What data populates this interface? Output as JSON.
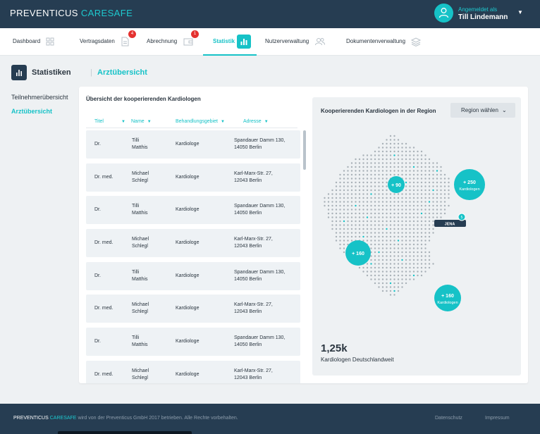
{
  "app": {
    "brand_main": "PREVENTICUS",
    "brand_accent": "CARESAFE"
  },
  "user": {
    "logged_in_label": "Angemeldet als",
    "name": "Till Lindemann"
  },
  "tabs": [
    {
      "label": "Dashboard",
      "icon": "grid-icon"
    },
    {
      "label": "Vertragsdaten",
      "icon": "document-icon",
      "badge": "4"
    },
    {
      "label": "Abrechnung",
      "icon": "wallet-icon",
      "badge": "1"
    },
    {
      "label": "Statistik",
      "icon": "bar-chart-icon",
      "active": true
    },
    {
      "label": "Nutzerverwaltung",
      "icon": "users-icon"
    },
    {
      "label": "Dokumentenverwaltung",
      "icon": "layers-icon"
    }
  ],
  "page": {
    "title": "Statistiken",
    "subtitle": "Arztübersicht"
  },
  "sidenav": [
    {
      "label": "Teilnehmerübersicht",
      "active": false
    },
    {
      "label": "Arztübersicht",
      "active": true
    }
  ],
  "table": {
    "title": "Übersicht der kooperierenden Kardiologen",
    "columns": [
      "Titel",
      "Name",
      "Behandlungsgebiet",
      "Adresse"
    ],
    "rows": [
      {
        "title": "Dr.",
        "first": "Tilli",
        "last": "Matthis",
        "area": "Kardiologe",
        "street": "Spandauer Damm 130,",
        "city": "14050  Berlin"
      },
      {
        "title": "Dr. med.",
        "first": "Michael",
        "last": "Schlegl",
        "area": "Kardiologe",
        "street": "Karl-Marx-Str. 27,",
        "city": "12043  Berlin"
      },
      {
        "title": "Dr.",
        "first": "Tilli",
        "last": "Matthis",
        "area": "Kardiologe",
        "street": "Spandauer Damm 130,",
        "city": "14050  Berlin"
      },
      {
        "title": "Dr. med.",
        "first": "Michael",
        "last": "Schlegl",
        "area": "Kardiologe",
        "street": "Karl-Marx-Str. 27,",
        "city": "12043  Berlin"
      },
      {
        "title": "Dr.",
        "first": "Tilli",
        "last": "Matthis",
        "area": "Kardiologe",
        "street": "Spandauer Damm 130,",
        "city": "14050  Berlin"
      },
      {
        "title": "Dr. med.",
        "first": "Michael",
        "last": "Schlegl",
        "area": "Kardiologe",
        "street": "Karl-Marx-Str. 27,",
        "city": "12043  Berlin"
      },
      {
        "title": "Dr.",
        "first": "Tilli",
        "last": "Matthis",
        "area": "Kardiologe",
        "street": "Spandauer Damm 130,",
        "city": "14050  Berlin"
      },
      {
        "title": "Dr. med.",
        "first": "Michael",
        "last": "Schlegl",
        "area": "Kardiologe",
        "street": "Karl-Marx-Str. 27,",
        "city": "12043  Berlin"
      }
    ]
  },
  "map": {
    "title": "Kooperierenden Kardiologen in der Region",
    "region_select": "Region wählen",
    "bubbles": [
      {
        "label": "+ 90",
        "sub": ""
      },
      {
        "label": "+ 250",
        "sub": "Kardiologen"
      },
      {
        "label": "+ 160",
        "sub": ""
      },
      {
        "label": "+ 160",
        "sub": "Kardiologen"
      }
    ],
    "city_tag": "JENA",
    "city_count": "5",
    "total_value": "1,25k",
    "total_label": "Kardiologen Deutschlandweit"
  },
  "footer": {
    "brand_main": "PREVENTICUS",
    "brand_accent": "CARESAFE",
    "text": "wird von der Preventicus GmbH 2017 betrieben. Alle Rechte vorbehalten.",
    "links": [
      "Datenschutz",
      "Impressum"
    ]
  },
  "colors": {
    "accent": "#16c2c7",
    "navy": "#263d52",
    "badge": "#e4312f"
  }
}
